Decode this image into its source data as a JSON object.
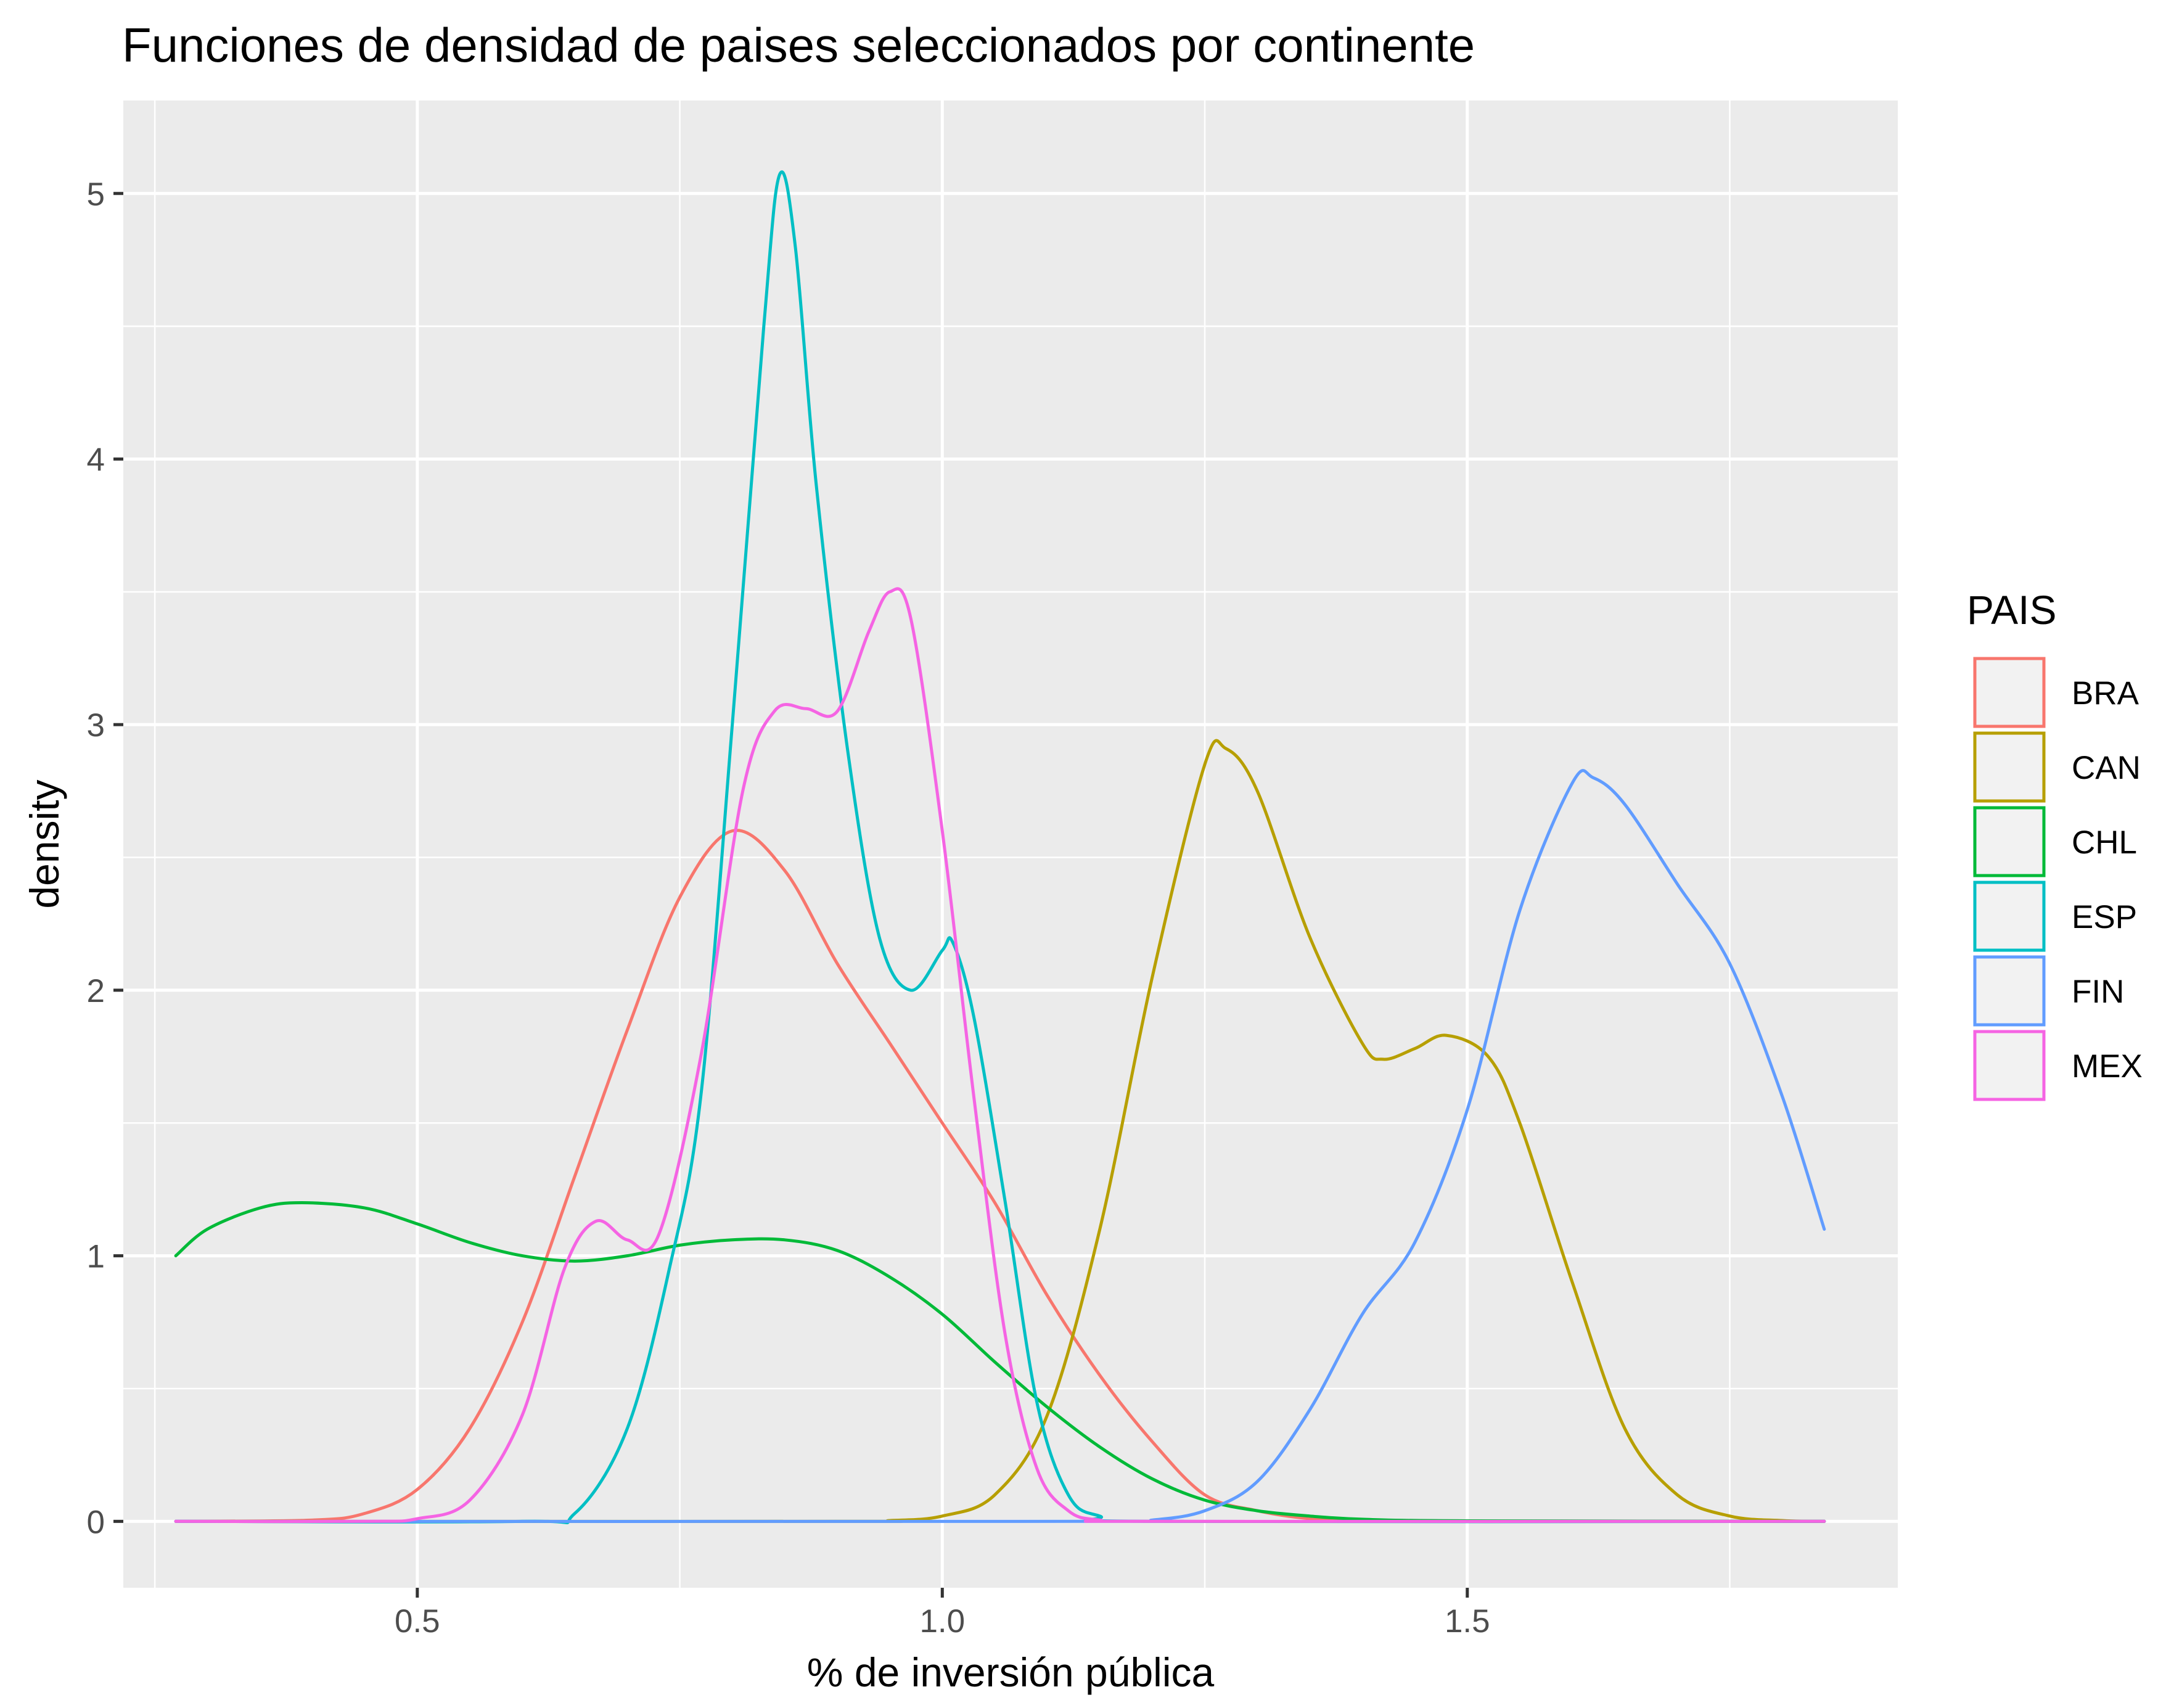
{
  "chart_data": {
    "type": "line",
    "title": "Funciones de densidad de paises seleccionados por continente",
    "xlabel": "% de inversión pública",
    "ylabel": "density",
    "xlim": [
      0.22,
      1.91
    ],
    "ylim": [
      -0.25,
      5.35
    ],
    "x_ticks": [
      0.5,
      1.0,
      1.5
    ],
    "x_tick_labels": [
      "0.5",
      "1.0",
      "1.5"
    ],
    "y_ticks": [
      0,
      1,
      2,
      3,
      4,
      5
    ],
    "y_tick_labels": [
      "0",
      "1",
      "2",
      "3",
      "4",
      "5"
    ],
    "grid": true,
    "background": "#ebebeb",
    "legend": {
      "title": "PAIS",
      "position": "right"
    },
    "series": [
      {
        "name": "BRA",
        "color": "#f8766d",
        "points": [
          [
            0.27,
            0
          ],
          [
            0.4,
            0.005
          ],
          [
            0.45,
            0.03
          ],
          [
            0.5,
            0.12
          ],
          [
            0.55,
            0.35
          ],
          [
            0.6,
            0.75
          ],
          [
            0.65,
            1.3
          ],
          [
            0.7,
            1.85
          ],
          [
            0.75,
            2.35
          ],
          [
            0.8,
            2.6
          ],
          [
            0.85,
            2.45
          ],
          [
            0.9,
            2.1
          ],
          [
            0.95,
            1.8
          ],
          [
            1.0,
            1.5
          ],
          [
            1.05,
            1.2
          ],
          [
            1.1,
            0.85
          ],
          [
            1.15,
            0.55
          ],
          [
            1.2,
            0.3
          ],
          [
            1.25,
            0.1
          ],
          [
            1.3,
            0.04
          ],
          [
            1.35,
            0.01
          ],
          [
            1.4,
            0.002
          ],
          [
            1.5,
            0
          ],
          [
            1.84,
            0
          ]
        ]
      },
      {
        "name": "CAN",
        "color": "#b79f00",
        "points": [
          [
            0.27,
            0
          ],
          [
            0.9,
            0
          ],
          [
            0.95,
            0.003
          ],
          [
            1.0,
            0.02
          ],
          [
            1.05,
            0.1
          ],
          [
            1.1,
            0.4
          ],
          [
            1.15,
            1.1
          ],
          [
            1.2,
            2.05
          ],
          [
            1.25,
            2.85
          ],
          [
            1.27,
            2.91
          ],
          [
            1.3,
            2.75
          ],
          [
            1.35,
            2.2
          ],
          [
            1.4,
            1.8
          ],
          [
            1.42,
            1.74
          ],
          [
            1.45,
            1.78
          ],
          [
            1.48,
            1.83
          ],
          [
            1.52,
            1.75
          ],
          [
            1.55,
            1.5
          ],
          [
            1.6,
            0.9
          ],
          [
            1.65,
            0.35
          ],
          [
            1.7,
            0.1
          ],
          [
            1.75,
            0.02
          ],
          [
            1.8,
            0.003
          ],
          [
            1.84,
            0
          ]
        ]
      },
      {
        "name": "CHL",
        "color": "#00ba38",
        "points": [
          [
            0.27,
            1.0
          ],
          [
            0.3,
            1.1
          ],
          [
            0.35,
            1.18
          ],
          [
            0.39,
            1.2
          ],
          [
            0.45,
            1.18
          ],
          [
            0.5,
            1.12
          ],
          [
            0.55,
            1.05
          ],
          [
            0.6,
            1.0
          ],
          [
            0.65,
            0.98
          ],
          [
            0.7,
            1.0
          ],
          [
            0.75,
            1.04
          ],
          [
            0.8,
            1.06
          ],
          [
            0.85,
            1.06
          ],
          [
            0.9,
            1.02
          ],
          [
            0.95,
            0.92
          ],
          [
            1.0,
            0.78
          ],
          [
            1.05,
            0.6
          ],
          [
            1.1,
            0.43
          ],
          [
            1.15,
            0.28
          ],
          [
            1.2,
            0.16
          ],
          [
            1.25,
            0.08
          ],
          [
            1.3,
            0.04
          ],
          [
            1.35,
            0.02
          ],
          [
            1.4,
            0.008
          ],
          [
            1.5,
            0.002
          ],
          [
            1.84,
            0
          ]
        ]
      },
      {
        "name": "ESP",
        "color": "#00bfc4",
        "points": [
          [
            0.27,
            0
          ],
          [
            0.6,
            0
          ],
          [
            0.65,
            0.03
          ],
          [
            0.7,
            0.35
          ],
          [
            0.74,
            0.95
          ],
          [
            0.77,
            1.6
          ],
          [
            0.8,
            3.0
          ],
          [
            0.83,
            4.5
          ],
          [
            0.845,
            5.07
          ],
          [
            0.86,
            4.8
          ],
          [
            0.88,
            3.9
          ],
          [
            0.91,
            2.9
          ],
          [
            0.94,
            2.2
          ],
          [
            0.97,
            2.0
          ],
          [
            1.0,
            2.15
          ],
          [
            1.01,
            2.18
          ],
          [
            1.03,
            1.9
          ],
          [
            1.06,
            1.2
          ],
          [
            1.09,
            0.45
          ],
          [
            1.12,
            0.1
          ],
          [
            1.15,
            0.02
          ],
          [
            1.2,
            0
          ],
          [
            1.84,
            0
          ]
        ]
      },
      {
        "name": "FIN",
        "color": "#619cff",
        "points": [
          [
            0.27,
            0
          ],
          [
            1.15,
            0
          ],
          [
            1.2,
            0.005
          ],
          [
            1.25,
            0.04
          ],
          [
            1.3,
            0.15
          ],
          [
            1.35,
            0.42
          ],
          [
            1.4,
            0.78
          ],
          [
            1.45,
            1.05
          ],
          [
            1.5,
            1.55
          ],
          [
            1.55,
            2.3
          ],
          [
            1.6,
            2.78
          ],
          [
            1.62,
            2.8
          ],
          [
            1.65,
            2.7
          ],
          [
            1.7,
            2.4
          ],
          [
            1.75,
            2.1
          ],
          [
            1.8,
            1.6
          ],
          [
            1.84,
            1.1
          ]
        ]
      },
      {
        "name": "MEX",
        "color": "#f564e3",
        "points": [
          [
            0.27,
            0
          ],
          [
            0.45,
            0
          ],
          [
            0.5,
            0.01
          ],
          [
            0.55,
            0.08
          ],
          [
            0.6,
            0.4
          ],
          [
            0.64,
            0.95
          ],
          [
            0.67,
            1.13
          ],
          [
            0.7,
            1.06
          ],
          [
            0.73,
            1.08
          ],
          [
            0.77,
            1.75
          ],
          [
            0.81,
            2.75
          ],
          [
            0.84,
            3.05
          ],
          [
            0.87,
            3.06
          ],
          [
            0.9,
            3.05
          ],
          [
            0.93,
            3.35
          ],
          [
            0.95,
            3.5
          ],
          [
            0.97,
            3.4
          ],
          [
            1.0,
            2.6
          ],
          [
            1.03,
            1.6
          ],
          [
            1.06,
            0.7
          ],
          [
            1.09,
            0.2
          ],
          [
            1.12,
            0.04
          ],
          [
            1.15,
            0.005
          ],
          [
            1.2,
            0
          ],
          [
            1.84,
            0
          ]
        ]
      }
    ]
  }
}
